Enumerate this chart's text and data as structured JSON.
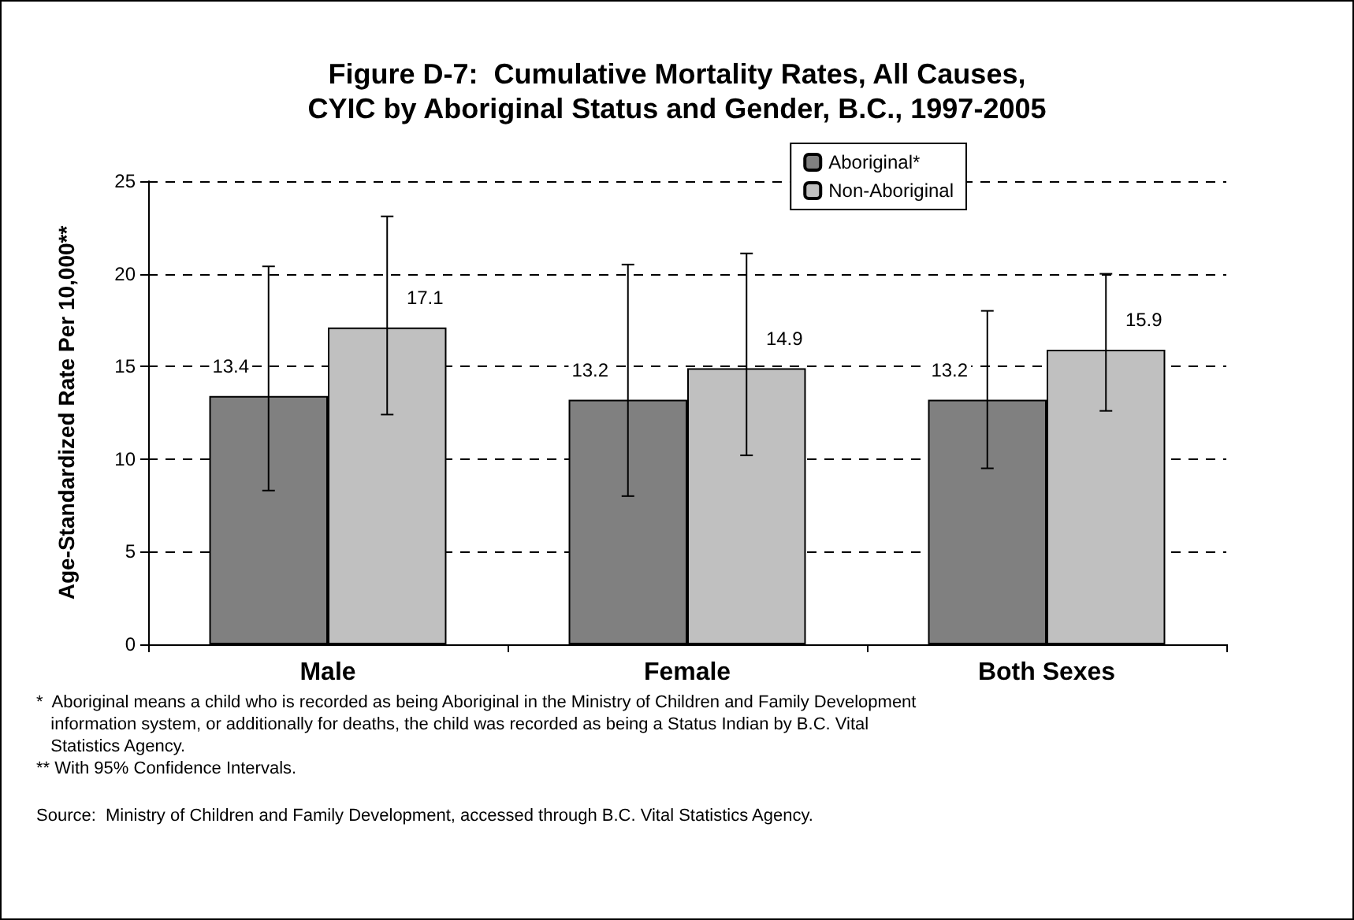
{
  "chart_data": {
    "type": "bar",
    "title": "Figure D-7:  Cumulative Mortality Rates, All Causes,\nCYIC by Aboriginal Status and Gender, B.C., 1997-2005",
    "ylabel": "Age-Standardized Rate Per 10,000**",
    "categories": [
      "Male",
      "Female",
      "Both Sexes"
    ],
    "series": [
      {
        "name": "Aboriginal*",
        "color": "#808080",
        "values": [
          13.4,
          13.2,
          13.2
        ],
        "errors": [
          [
            8.3,
            20.4
          ],
          [
            8.0,
            20.5
          ],
          [
            9.5,
            18.0
          ]
        ]
      },
      {
        "name": "Non-Aboriginal",
        "color": "#c0c0c0",
        "values": [
          17.1,
          14.9,
          15.9
        ],
        "errors": [
          [
            12.4,
            23.1
          ],
          [
            10.2,
            21.1
          ],
          [
            12.6,
            20.0
          ]
        ]
      }
    ],
    "ylim": [
      0,
      25
    ],
    "yticks": [
      0,
      5,
      10,
      15,
      20,
      25
    ],
    "grid": "y",
    "legend": "top right",
    "data_labels": true,
    "annotations": [
      "*  Aboriginal means a child who is recorded as being Aboriginal in the Ministry of Children and Family Development\n   information system, or additionally for deaths, the child was recorded as being a Status Indian by B.C. Vital\n   Statistics Agency.",
      "** With 95% Confidence Intervals.",
      "Source:  Ministry of Children and Family Development, accessed through B.C. Vital Statistics Agency."
    ]
  }
}
